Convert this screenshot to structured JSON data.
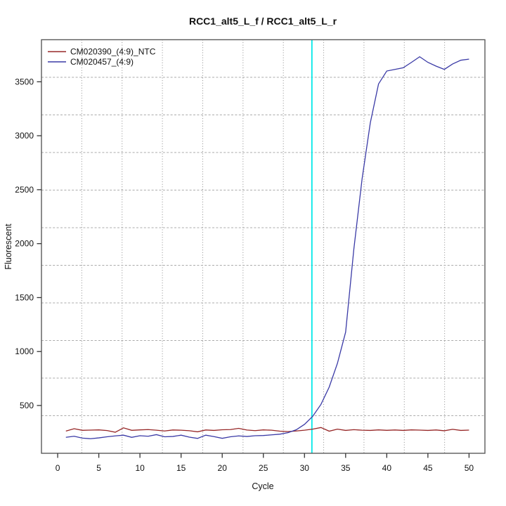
{
  "chart_data": {
    "type": "line",
    "title": "RCC1_alt5_L_f / RCC1_alt5_L_r",
    "xlabel": "Cycle",
    "ylabel": "Fluorescent",
    "x_ticks": [
      0,
      5,
      10,
      15,
      20,
      25,
      30,
      35,
      40,
      45,
      50
    ],
    "y_ticks": [
      500,
      1000,
      1500,
      2000,
      2500,
      3000,
      3500
    ],
    "xlim": [
      -1.97,
      51.93
    ],
    "ylim": [
      57,
      3890
    ],
    "grid": {
      "on": true,
      "nx_cells": 11,
      "ny_cells": 11,
      "v_color": "#8c8c8c",
      "h_color": "#ababab"
    },
    "legend_position": "top-left",
    "threshold_line": {
      "x": 30.9,
      "color": "#00e8e8"
    },
    "x_start": 1,
    "x_step": 1,
    "series": [
      {
        "name": "CM020390_(4:9)_NTC",
        "color": "#962626",
        "values": [
          263,
          285,
          270,
          272,
          274,
          268,
          252,
          293,
          270,
          274,
          277,
          271,
          264,
          273,
          271,
          266,
          256,
          273,
          269,
          275,
          277,
          288,
          273,
          267,
          274,
          271,
          262,
          258,
          264,
          271,
          281,
          296,
          262,
          281,
          269,
          276,
          271,
          269,
          274,
          270,
          273,
          269,
          274,
          272,
          269,
          273,
          266,
          279,
          269,
          272
        ]
      },
      {
        "name": "CM020457_(4:9)",
        "color": "#3a3aa6",
        "values": [
          205,
          215,
          198,
          192,
          200,
          210,
          218,
          225,
          205,
          220,
          215,
          230,
          210,
          213,
          225,
          207,
          195,
          225,
          212,
          196,
          210,
          218,
          213,
          220,
          222,
          228,
          234,
          248,
          275,
          325,
          400,
          510,
          670,
          890,
          1180,
          1950,
          2600,
          3120,
          3480,
          3600,
          3615,
          3630,
          3680,
          3732,
          3680,
          3645,
          3615,
          3665,
          3700,
          3710
        ]
      }
    ]
  }
}
